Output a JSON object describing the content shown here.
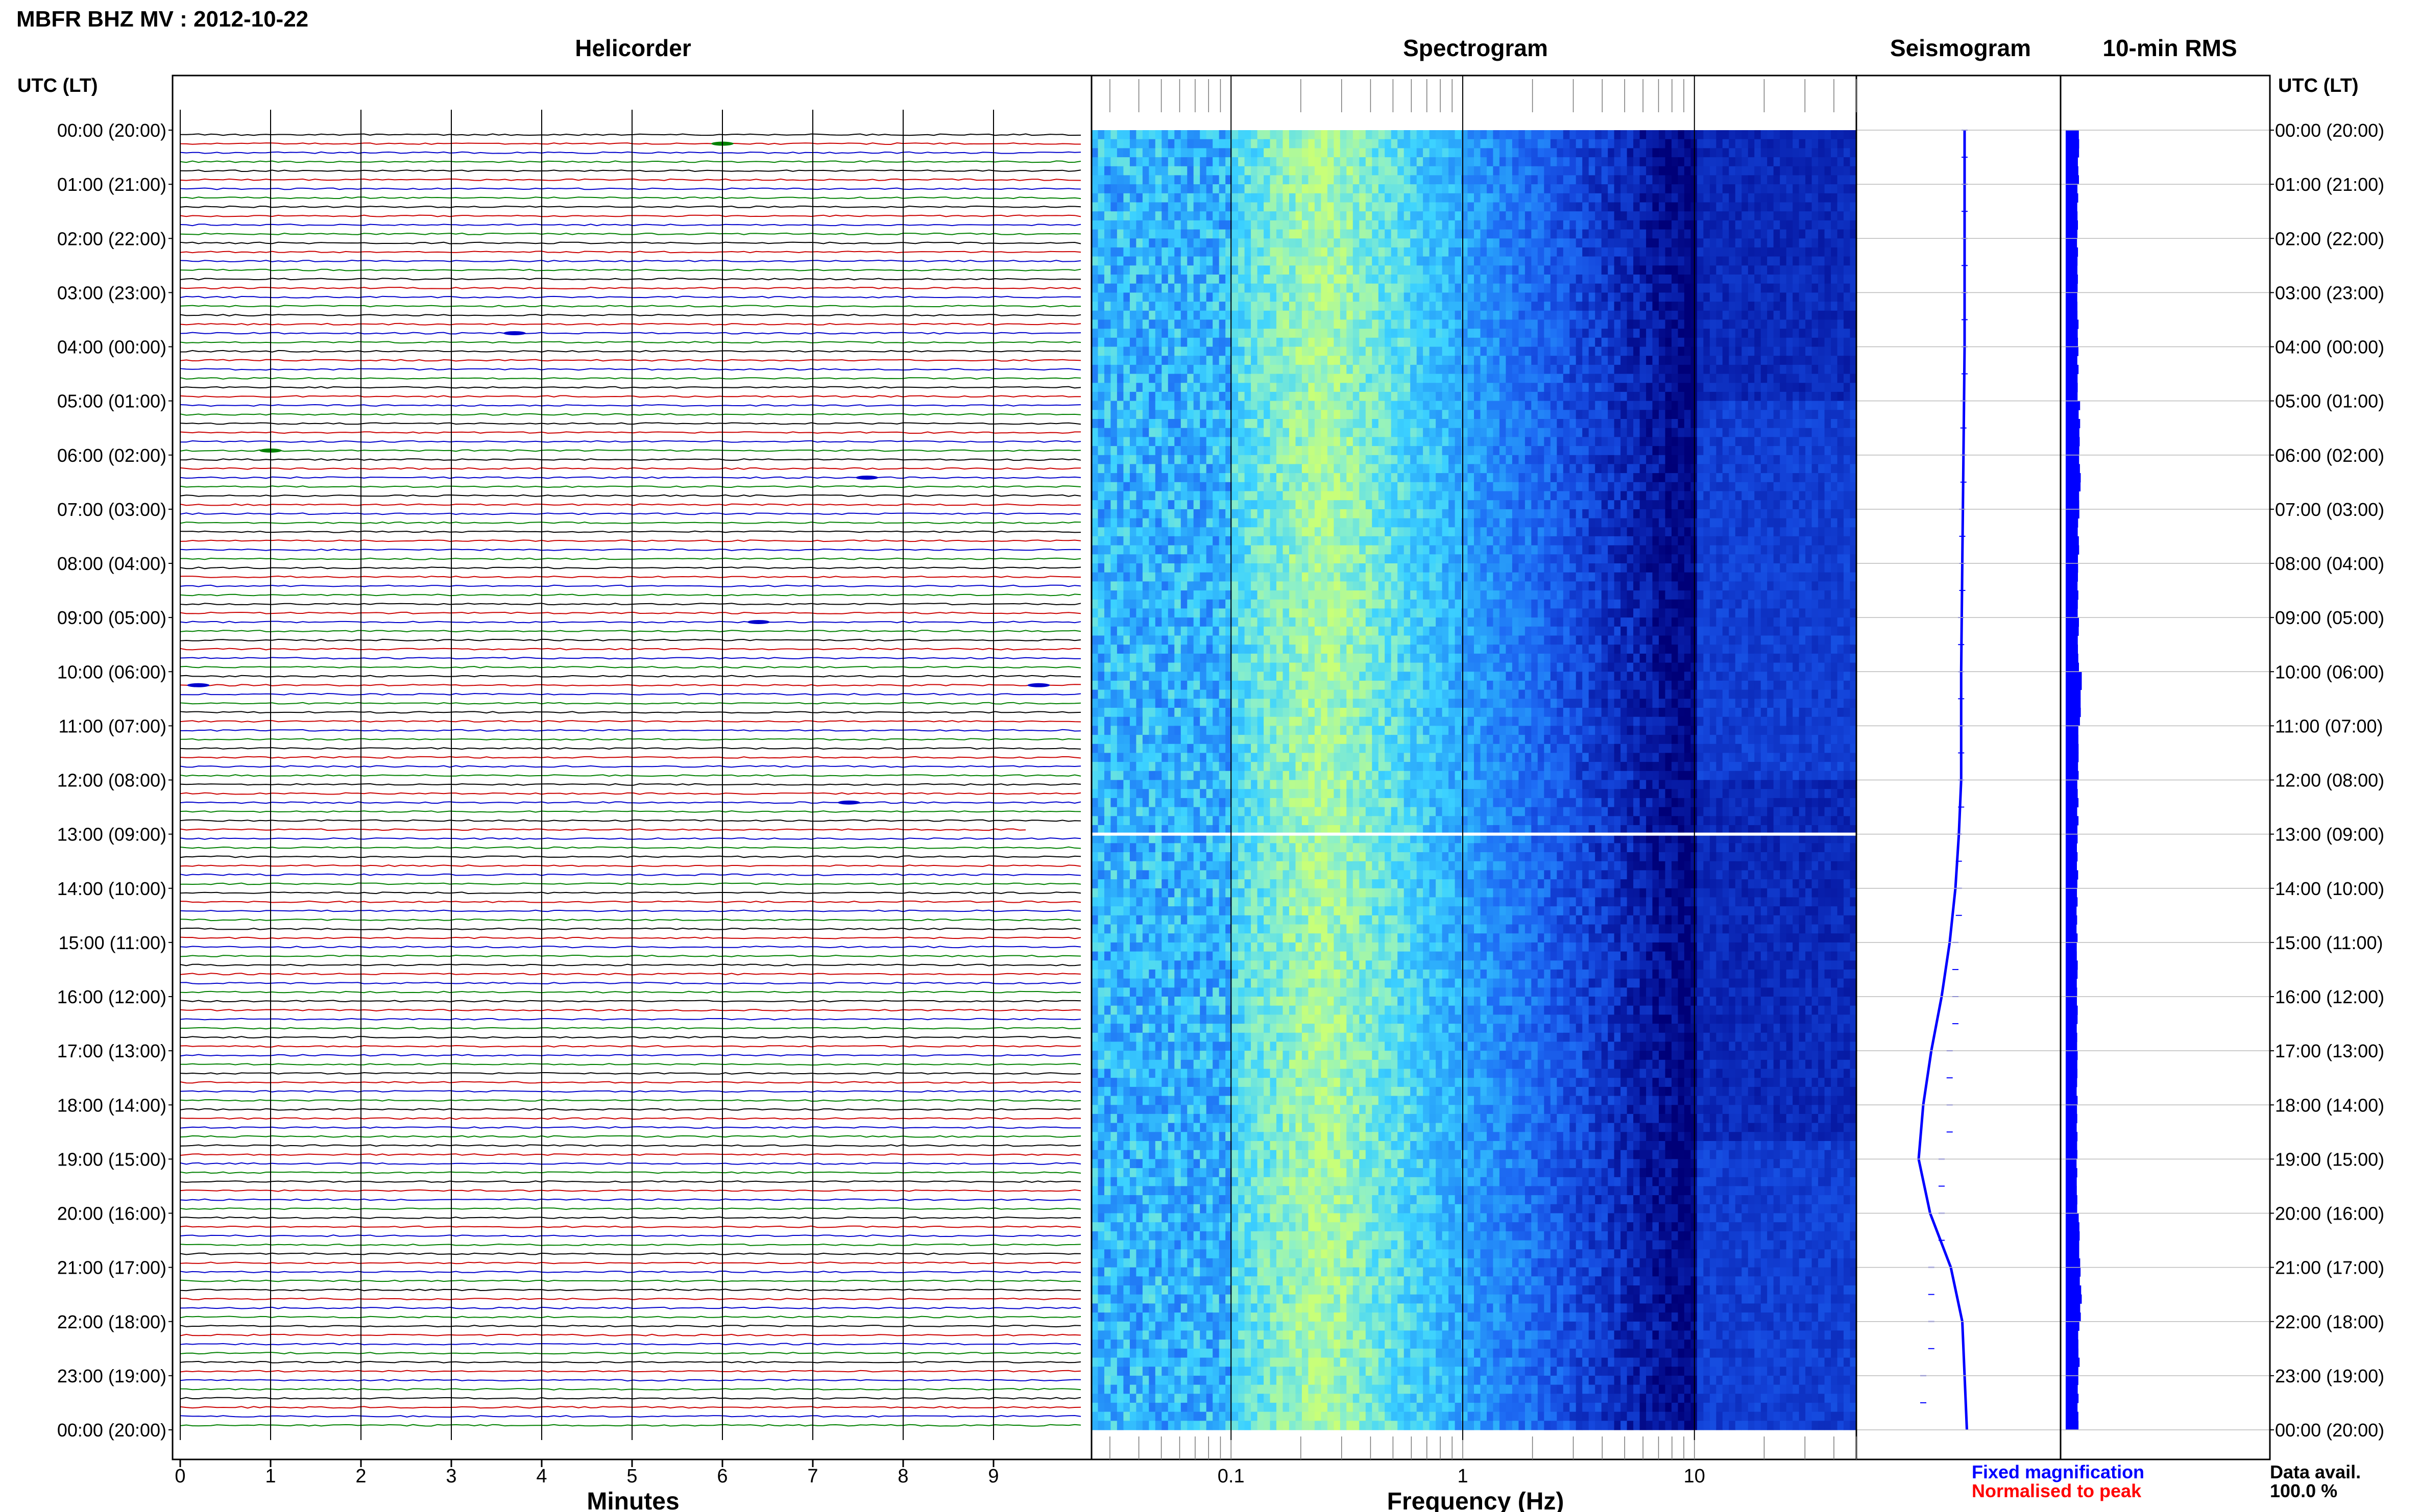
{
  "header": {
    "title": "MBFR BHZ MV : 2012-10-22"
  },
  "panels": {
    "helicorder": "Helicorder",
    "spectrogram": "Spectrogram",
    "seismogram": "Seismogram",
    "rms": "10-min RMS"
  },
  "time_axis_label_left": "UTC (LT)",
  "time_axis_label_right": "UTC (LT)",
  "hour_labels": [
    "00:00 (20:00)",
    "01:00 (21:00)",
    "02:00 (22:00)",
    "03:00 (23:00)",
    "04:00 (00:00)",
    "05:00 (01:00)",
    "06:00 (02:00)",
    "07:00 (03:00)",
    "08:00 (04:00)",
    "09:00 (05:00)",
    "10:00 (06:00)",
    "11:00 (07:00)",
    "12:00 (08:00)",
    "13:00 (09:00)",
    "14:00 (10:00)",
    "15:00 (11:00)",
    "16:00 (12:00)",
    "17:00 (13:00)",
    "18:00 (14:00)",
    "19:00 (15:00)",
    "20:00 (16:00)",
    "21:00 (17:00)",
    "22:00 (18:00)",
    "23:00 (19:00)",
    "00:00 (20:00)"
  ],
  "footer": {
    "fixed_label": "Fixed magnification",
    "normalised_label": "Normalised to peak",
    "avail_label": "Data avail.",
    "avail_value": "100.0 %"
  },
  "colors": {
    "trace_colors": [
      "#000000",
      "#cc0000",
      "#0000cc",
      "#008000"
    ],
    "fixed": "#0000ff",
    "normalised": "#ff0000",
    "spec_low": "#00008a",
    "spec_mid": "#1e58f0",
    "spec_high": "#33ddff",
    "spec_peak": "#b8ff80"
  },
  "chart_data": [
    {
      "type": "line",
      "name": "helicorder",
      "title": "Helicorder",
      "xlabel": "Minutes",
      "x_ticks": [
        "0",
        "1",
        "2",
        "3",
        "4",
        "5",
        "6",
        "7",
        "8",
        "9"
      ],
      "xlim": [
        0,
        10
      ],
      "rows_per_hour": 6,
      "hours": 24,
      "data_gap": {
        "hour": 12,
        "row": 5,
        "start_minute": 9.4,
        "end_minute": 10
      },
      "notable_events": [
        {
          "hour": 0,
          "row": 1,
          "minute": 6.0,
          "color": "#008000"
        },
        {
          "hour": 3,
          "row": 4,
          "minute": 3.7,
          "color": "#0000cc"
        },
        {
          "hour": 5,
          "row": 5,
          "minute": 1.0,
          "color": "#008000"
        },
        {
          "hour": 6,
          "row": 2,
          "minute": 7.6,
          "color": "#0000cc"
        },
        {
          "hour": 9,
          "row": 0,
          "minute": 6.4,
          "color": "#0000cc"
        },
        {
          "hour": 10,
          "row": 1,
          "minute": 0.2,
          "color": "#0000cc"
        },
        {
          "hour": 10,
          "row": 1,
          "minute": 9.5,
          "color": "#0000cc"
        },
        {
          "hour": 12,
          "row": 2,
          "minute": 7.4,
          "color": "#0000cc"
        }
      ]
    },
    {
      "type": "heatmap",
      "name": "spectrogram",
      "title": "Spectrogram",
      "xlabel": "Frequency (Hz)",
      "x_scale": "log",
      "xlim": [
        0.025,
        50
      ],
      "x_ticks": [
        "0.1",
        "1",
        "10"
      ],
      "peak_frequency_hz": 0.25,
      "gap_hour": 13
    },
    {
      "type": "line",
      "name": "seismogram",
      "title": "Seismogram",
      "legend": "Fixed magnification",
      "hours": [
        0,
        2,
        4,
        6,
        8,
        10,
        12,
        13,
        14,
        15,
        16,
        17,
        18,
        19,
        20,
        21,
        22,
        23,
        24
      ],
      "values": [
        0.0,
        0.0,
        0.0,
        -0.01,
        -0.02,
        -0.03,
        -0.03,
        -0.05,
        -0.08,
        -0.13,
        -0.2,
        -0.29,
        -0.36,
        -0.4,
        -0.3,
        -0.12,
        -0.02,
        0.0,
        0.02
      ]
    },
    {
      "type": "bar",
      "name": "rms",
      "title": "10-min RMS",
      "bins_per_hour": 6,
      "relative_level_by_hour": [
        0.8,
        0.7,
        0.65,
        0.7,
        0.7,
        0.9,
        1.0,
        0.8,
        0.7,
        0.75,
        1.1,
        0.85,
        0.7,
        0.65,
        0.6,
        0.6,
        0.6,
        0.6,
        0.6,
        0.6,
        0.9,
        1.1,
        0.85,
        0.7
      ]
    }
  ]
}
